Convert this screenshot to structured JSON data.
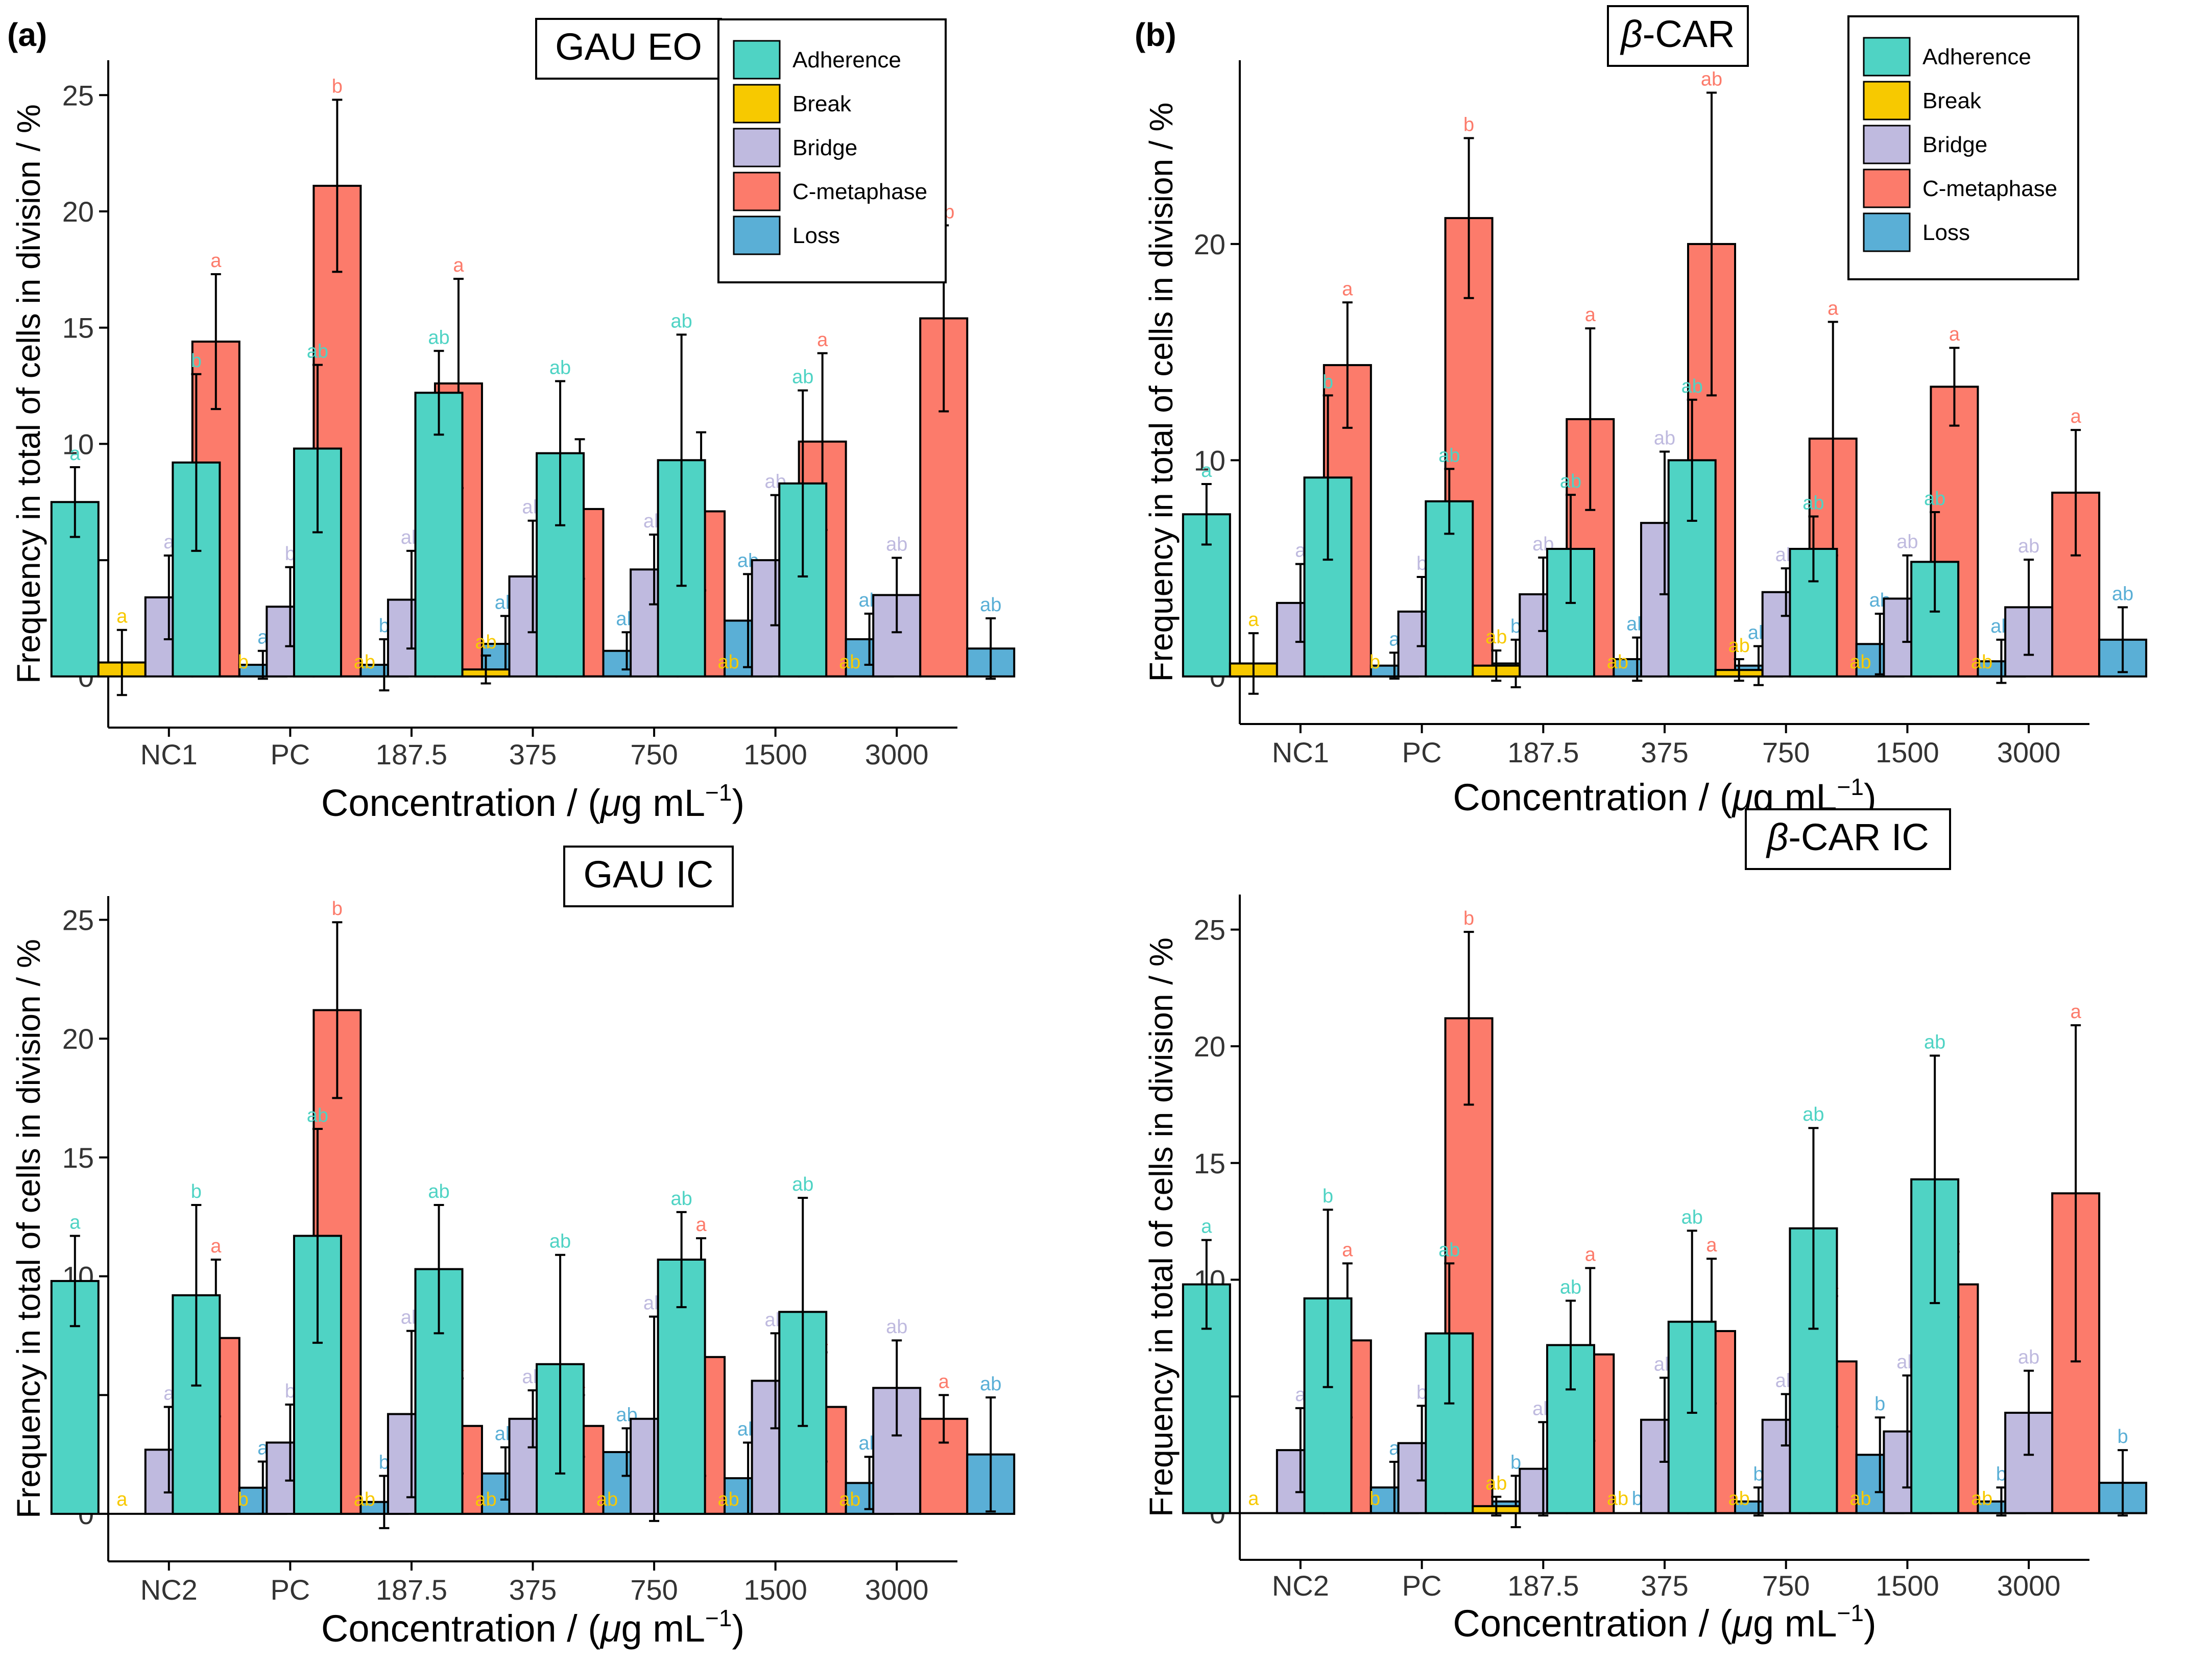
{
  "figure": {
    "label_a": "(a)",
    "label_b": "(b)"
  },
  "legend": {
    "entries": [
      "Adherence",
      "Break",
      "Bridge",
      "C-metaphase",
      "Loss"
    ],
    "colors": [
      "#4fd3c4",
      "#f7c900",
      "#bfbadf",
      "#fc7b6b",
      "#5aafd6"
    ]
  },
  "chart_data": [
    {
      "type": "bar",
      "title": "GAU EO",
      "xlabel_main": "Concentration / (",
      "xlabel_mu": "μ",
      "xlabel_rest": "g mL",
      "xlabel_sup": "−1",
      "xlabel_end": ")",
      "ylabel": "Frequency in total of cells in division / %",
      "ylim": [
        -2.2,
        26.5
      ],
      "yticks": [
        0,
        5,
        10,
        15,
        20,
        25
      ],
      "categories": [
        "NC1",
        "PC",
        "187.5",
        "375",
        "750",
        "1500",
        "3000"
      ],
      "legend": true,
      "series": [
        {
          "name": "Adherence",
          "values": [
            7.5,
            9.2,
            9.8,
            12.2,
            9.6,
            9.3,
            8.3
          ],
          "errors": [
            1.5,
            3.8,
            3.6,
            1.8,
            3.1,
            5.4,
            4.0
          ],
          "letters": [
            "a",
            "b",
            "ab",
            "ab",
            "ab",
            "ab",
            "ab"
          ]
        },
        {
          "name": "Break",
          "values": [
            0.6,
            0,
            0,
            0.3,
            0,
            0,
            0
          ],
          "errors": [
            1.4,
            0,
            0,
            0.6,
            0,
            0,
            0
          ],
          "letters": [
            "a",
            "b",
            "ab",
            "ab",
            "",
            "ab",
            "ab"
          ]
        },
        {
          "name": "Bridge",
          "values": [
            3.4,
            3.0,
            3.3,
            4.3,
            4.6,
            5.0,
            3.5
          ],
          "errors": [
            1.8,
            1.7,
            2.1,
            2.4,
            1.5,
            2.8,
            1.6
          ],
          "letters": [
            "a",
            "b",
            "ab",
            "ab",
            "ab",
            "ab",
            "ab"
          ]
        },
        {
          "name": "C-metaphase",
          "values": [
            14.4,
            21.1,
            12.6,
            7.2,
            7.1,
            10.1,
            15.4
          ],
          "errors": [
            2.9,
            3.7,
            4.5,
            3.0,
            3.4,
            3.8,
            4.0
          ],
          "letters": [
            "a",
            "b",
            "a",
            "",
            "",
            "a",
            "ab"
          ]
        },
        {
          "name": "Loss",
          "values": [
            0.5,
            0.5,
            1.4,
            1.1,
            2.4,
            1.6,
            1.2
          ],
          "errors": [
            0.6,
            1.1,
            1.2,
            0.8,
            2.0,
            1.1,
            1.3
          ],
          "letters": [
            "a",
            "b",
            "ab",
            "ab",
            "ab",
            "ab",
            "ab"
          ]
        }
      ]
    },
    {
      "type": "bar",
      "title": "β-CAR",
      "xlabel_main": "Concentration / (",
      "xlabel_mu": "μ",
      "xlabel_rest": "g mL",
      "xlabel_sup": "−1",
      "xlabel_end": ")",
      "ylabel": "Frequency in total of cells in division / %",
      "ylim": [
        -2.2,
        28.5
      ],
      "yticks": [
        0,
        10,
        20
      ],
      "categories": [
        "NC1",
        "PC",
        "187.5",
        "375",
        "750",
        "1500",
        "3000"
      ],
      "legend": true,
      "series": [
        {
          "name": "Adherence",
          "values": [
            7.5,
            9.2,
            8.1,
            5.9,
            10.0,
            5.9,
            5.3
          ],
          "errors": [
            1.4,
            3.8,
            1.5,
            2.5,
            2.8,
            1.5,
            2.3
          ],
          "letters": [
            "a",
            "b",
            "ab",
            "ab",
            "ab",
            "ab",
            "ab"
          ]
        },
        {
          "name": "Break",
          "values": [
            0.6,
            0,
            0.5,
            0,
            0.3,
            0,
            0
          ],
          "errors": [
            1.4,
            0,
            0.7,
            0,
            0.5,
            0,
            0
          ],
          "letters": [
            "a",
            "b",
            "ab",
            "ab",
            "ab",
            "ab",
            "ab"
          ]
        },
        {
          "name": "Bridge",
          "values": [
            3.4,
            3.0,
            3.8,
            7.1,
            3.9,
            3.6,
            3.2
          ],
          "errors": [
            1.8,
            1.6,
            1.7,
            3.3,
            1.1,
            2.0,
            2.2
          ],
          "letters": [
            "a",
            "b",
            "ab",
            "ab",
            "ab",
            "ab",
            "ab"
          ]
        },
        {
          "name": "C-metaphase",
          "values": [
            14.4,
            21.2,
            11.9,
            20.0,
            11.0,
            13.4,
            8.5
          ],
          "errors": [
            2.9,
            3.7,
            4.2,
            7.0,
            5.4,
            1.8,
            2.9
          ],
          "letters": [
            "a",
            "b",
            "a",
            "ab",
            "a",
            "a",
            "a"
          ]
        },
        {
          "name": "Loss",
          "values": [
            0.5,
            0.6,
            0.8,
            0.5,
            1.5,
            0.7,
            1.7
          ],
          "errors": [
            0.6,
            1.1,
            1.0,
            0.9,
            1.4,
            1.0,
            1.5
          ],
          "letters": [
            "a",
            "b",
            "ab",
            "ab",
            "ab",
            "ab",
            "ab"
          ]
        }
      ]
    },
    {
      "type": "bar",
      "title": "GAU IC",
      "xlabel_main": "Concentration / (",
      "xlabel_mu": "μ",
      "xlabel_rest": "g mL",
      "xlabel_sup": "−1",
      "xlabel_end": ")",
      "ylabel": "Frequency in total of cells in division / %",
      "ylim": [
        -2.0,
        26.0
      ],
      "yticks": [
        0,
        5,
        10,
        15,
        20,
        25
      ],
      "categories": [
        "NC2",
        "PC",
        "187.5",
        "375",
        "750",
        "1500",
        "3000"
      ],
      "legend": false,
      "series": [
        {
          "name": "Adherence",
          "values": [
            9.8,
            9.2,
            11.7,
            10.3,
            6.3,
            10.7,
            8.5
          ],
          "errors": [
            1.9,
            3.8,
            4.5,
            2.7,
            4.6,
            2.0,
            4.8
          ],
          "letters": [
            "a",
            "b",
            "ab",
            "ab",
            "ab",
            "ab",
            "ab"
          ]
        },
        {
          "name": "Break",
          "values": [
            0,
            0,
            0,
            0,
            0,
            0,
            0
          ],
          "errors": [
            0,
            0,
            0,
            0,
            0,
            0,
            0
          ],
          "letters": [
            "a",
            "b",
            "ab",
            "ab",
            "ab",
            "ab",
            "ab"
          ]
        },
        {
          "name": "Bridge",
          "values": [
            2.7,
            3.0,
            4.2,
            4.0,
            4.0,
            5.6,
            5.3
          ],
          "errors": [
            1.8,
            1.6,
            3.5,
            1.2,
            4.3,
            2.0,
            2.0
          ],
          "letters": [
            "a",
            "b",
            "ab",
            "ab",
            "ab",
            "ab",
            "ab"
          ]
        },
        {
          "name": "C-metaphase",
          "values": [
            7.4,
            21.2,
            3.7,
            3.7,
            6.6,
            4.5,
            4.0
          ],
          "errors": [
            3.3,
            3.7,
            2.0,
            1.3,
            5.0,
            2.3,
            1.0
          ],
          "letters": [
            "a",
            "b",
            "a",
            "a",
            "a",
            "a",
            "a"
          ]
        },
        {
          "name": "Loss",
          "values": [
            1.1,
            0.5,
            1.7,
            2.6,
            1.5,
            1.3,
            2.5
          ],
          "errors": [
            1.1,
            1.1,
            1.1,
            1.0,
            1.5,
            1.1,
            2.4
          ],
          "letters": [
            "a",
            "b",
            "ab",
            "ab",
            "ab",
            "ab",
            "ab"
          ]
        }
      ]
    },
    {
      "type": "bar",
      "title": "β-CAR IC",
      "xlabel_main": "Concentration / (",
      "xlabel_mu": "μ",
      "xlabel_rest": "g mL",
      "xlabel_sup": "−1",
      "xlabel_end": ")",
      "ylabel": "Frequency in total of cells in division / %",
      "ylim": [
        -2.0,
        26.5
      ],
      "yticks": [
        0,
        5,
        10,
        15,
        20,
        25
      ],
      "categories": [
        "NC2",
        "PC",
        "187.5",
        "375",
        "750",
        "1500",
        "3000"
      ],
      "legend": false,
      "series": [
        {
          "name": "Adherence",
          "values": [
            9.8,
            9.2,
            7.7,
            7.2,
            8.2,
            12.2,
            14.3
          ],
          "errors": [
            1.9,
            3.8,
            3.0,
            1.9,
            3.9,
            4.3,
            5.3
          ],
          "letters": [
            "a",
            "b",
            "ab",
            "ab",
            "ab",
            "ab",
            "ab"
          ]
        },
        {
          "name": "Break",
          "values": [
            0,
            0,
            0.3,
            0,
            0,
            0,
            0
          ],
          "errors": [
            0,
            0,
            0.4,
            0,
            0,
            0,
            0
          ],
          "letters": [
            "a",
            "b",
            "ab",
            "ab",
            "ab",
            "ab",
            "ab"
          ]
        },
        {
          "name": "Bridge",
          "values": [
            2.7,
            3.0,
            1.9,
            4.0,
            4.0,
            3.5,
            4.3
          ],
          "errors": [
            1.8,
            1.6,
            2.0,
            1.8,
            1.1,
            2.4,
            1.8
          ],
          "letters": [
            "a",
            "b",
            "ab",
            "ab",
            "ab",
            "ab",
            "ab"
          ]
        },
        {
          "name": "C-metaphase",
          "values": [
            7.4,
            21.2,
            6.8,
            7.8,
            6.5,
            9.8,
            13.7
          ],
          "errors": [
            3.3,
            3.7,
            3.7,
            3.1,
            2.8,
            1.4,
            7.2
          ],
          "letters": [
            "a",
            "b",
            "a",
            "a",
            "a",
            "a",
            "a"
          ]
        },
        {
          "name": "Loss",
          "values": [
            1.1,
            0.5,
            0,
            0.5,
            2.5,
            0.5,
            1.3
          ],
          "errors": [
            1.1,
            1.1,
            0,
            0.6,
            1.6,
            0.6,
            1.4
          ],
          "letters": [
            "a",
            "b",
            "b",
            "b",
            "b",
            "b",
            "b"
          ]
        }
      ]
    }
  ]
}
